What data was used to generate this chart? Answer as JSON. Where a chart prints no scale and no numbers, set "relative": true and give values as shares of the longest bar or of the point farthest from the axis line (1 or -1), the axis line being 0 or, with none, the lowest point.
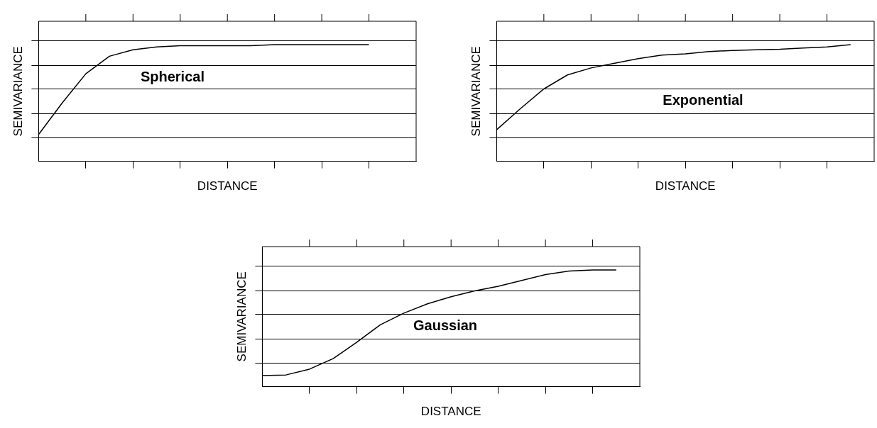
{
  "chart_data": [
    {
      "type": "line",
      "relative": true,
      "xlabel": "DISTANCE",
      "ylabel": "SEMIVARIANCE",
      "categories": [
        null,
        null,
        null,
        null,
        null,
        null,
        null,
        null,
        null,
        null,
        null,
        null,
        null,
        null,
        null,
        null,
        null
      ],
      "tick_labels": false,
      "grid": "y",
      "legend": false,
      "marker": "none",
      "line_style": "solid",
      "series": [
        {
          "name": "Spherical",
          "color": "#000000",
          "values": [
            0.23,
            0.5,
            0.75,
            0.9,
            0.955,
            0.98,
            0.99,
            0.99,
            0.99,
            0.99,
            1,
            1,
            1,
            1,
            1,
            null,
            null
          ]
        }
      ]
    },
    {
      "type": "line",
      "relative": true,
      "xlabel": "DISTANCE",
      "ylabel": "SEMIVARIANCE",
      "categories": [
        null,
        null,
        null,
        null,
        null,
        null,
        null,
        null,
        null,
        null,
        null,
        null,
        null,
        null,
        null,
        null,
        null
      ],
      "tick_labels": false,
      "grid": "y",
      "legend": false,
      "marker": "none",
      "line_style": "solid",
      "series": [
        {
          "name": "Exponential",
          "color": "#000000",
          "values": [
            0.27,
            0.45,
            0.62,
            0.74,
            0.8,
            0.84,
            0.88,
            0.91,
            0.92,
            0.94,
            0.95,
            0.955,
            0.96,
            0.97,
            0.98,
            1,
            null
          ]
        }
      ]
    },
    {
      "type": "line",
      "relative": true,
      "xlabel": "DISTANCE",
      "ylabel": "SEMIVARIANCE",
      "categories": [
        null,
        null,
        null,
        null,
        null,
        null,
        null,
        null,
        null,
        null,
        null,
        null,
        null,
        null,
        null,
        null,
        null
      ],
      "tick_labels": false,
      "grid": "y",
      "legend": false,
      "marker": "none",
      "line_style": "solid",
      "series": [
        {
          "name": "Gaussian",
          "color": "#000000",
          "values": [
            0.095,
            0.1,
            0.15,
            0.24,
            0.38,
            0.53,
            0.63,
            0.71,
            0.77,
            0.82,
            0.86,
            0.91,
            0.96,
            0.99,
            1,
            1,
            null
          ]
        }
      ]
    }
  ]
}
